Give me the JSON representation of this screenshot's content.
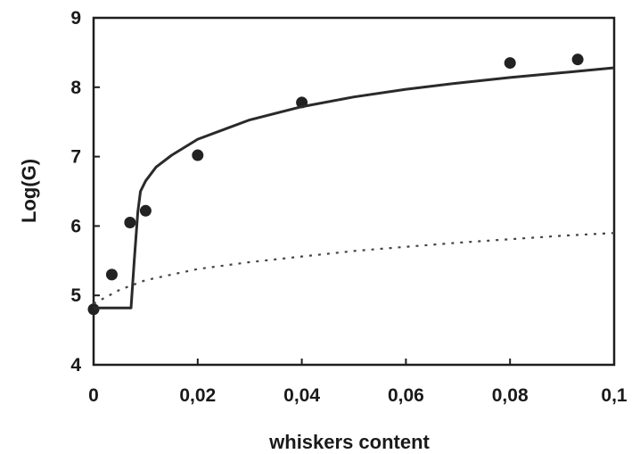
{
  "chart_data": {
    "type": "scatter",
    "xlabel": "whiskers content",
    "ylabel": "Log(G)",
    "xlim": [
      0,
      0.1
    ],
    "ylim": [
      4,
      9
    ],
    "x_ticks": [
      0,
      0.02,
      0.04,
      0.06,
      0.08,
      0.1
    ],
    "x_tick_labels": [
      "0",
      "0,02",
      "0,04",
      "0,06",
      "0,08",
      "0,1"
    ],
    "y_ticks": [
      4,
      5,
      6,
      7,
      8,
      9
    ],
    "y_tick_labels": [
      "4",
      "5",
      "6",
      "7",
      "8",
      "9"
    ],
    "grid": false,
    "legend": "none",
    "series": [
      {
        "kind": "points",
        "color": "#222222",
        "x": [
          0,
          0.0035,
          0.007,
          0.01,
          0.02,
          0.04,
          0.08,
          0.093
        ],
        "y": [
          4.8,
          5.3,
          6.05,
          6.22,
          7.02,
          7.78,
          8.35,
          8.4
        ]
      },
      {
        "kind": "solid-line",
        "color": "#2a2a2a",
        "x": [
          0,
          0.0072,
          0.0078,
          0.0085,
          0.009,
          0.01,
          0.012,
          0.015,
          0.02,
          0.03,
          0.04,
          0.05,
          0.06,
          0.07,
          0.08,
          0.09,
          0.1
        ],
        "y": [
          4.82,
          4.82,
          5.5,
          6.2,
          6.5,
          6.65,
          6.85,
          7.02,
          7.25,
          7.53,
          7.72,
          7.86,
          7.97,
          8.06,
          8.14,
          8.21,
          8.28
        ]
      },
      {
        "kind": "dotted-line",
        "color": "#444444",
        "x": [
          0,
          0.005,
          0.01,
          0.02,
          0.03,
          0.04,
          0.05,
          0.06,
          0.07,
          0.08,
          0.09,
          0.1
        ],
        "y": [
          4.88,
          5.08,
          5.22,
          5.38,
          5.48,
          5.56,
          5.64,
          5.7,
          5.76,
          5.81,
          5.86,
          5.9
        ]
      }
    ]
  }
}
